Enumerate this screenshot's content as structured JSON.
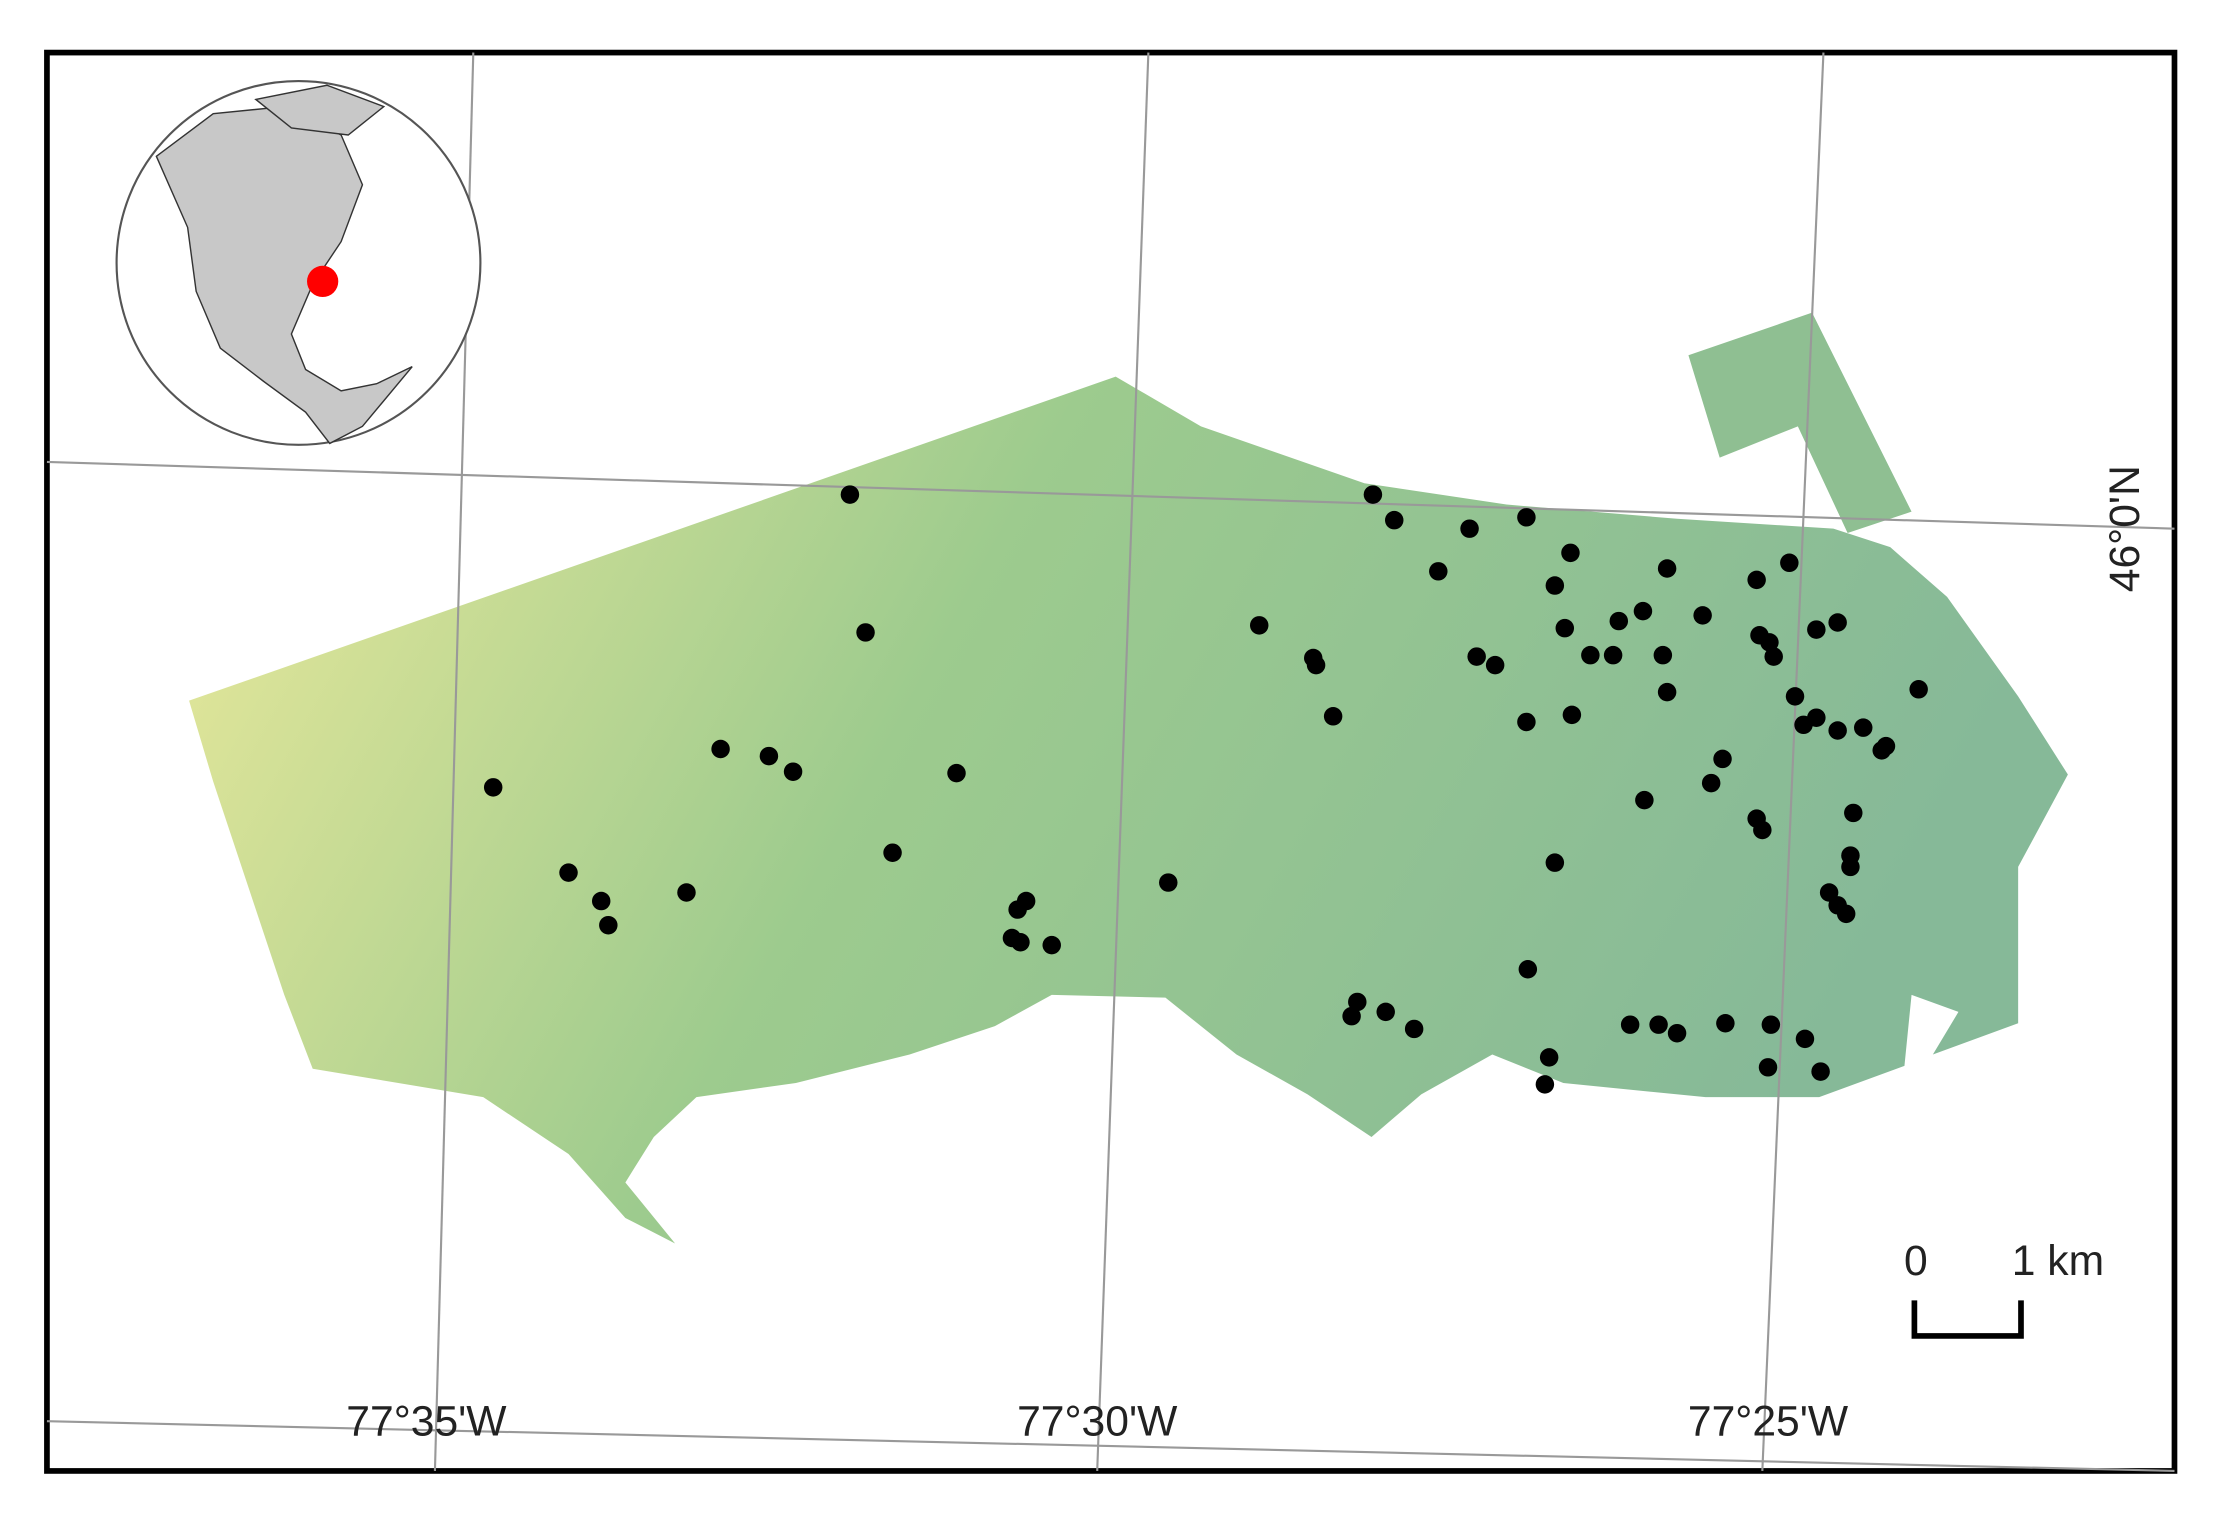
{
  "map": {
    "longitude_labels": [
      "77°35'W",
      "77°30'W",
      "77°25'W"
    ],
    "latitude_labels": [
      "46°0'N"
    ],
    "scale_bar": {
      "start": "0",
      "end": "1 km"
    }
  }
}
